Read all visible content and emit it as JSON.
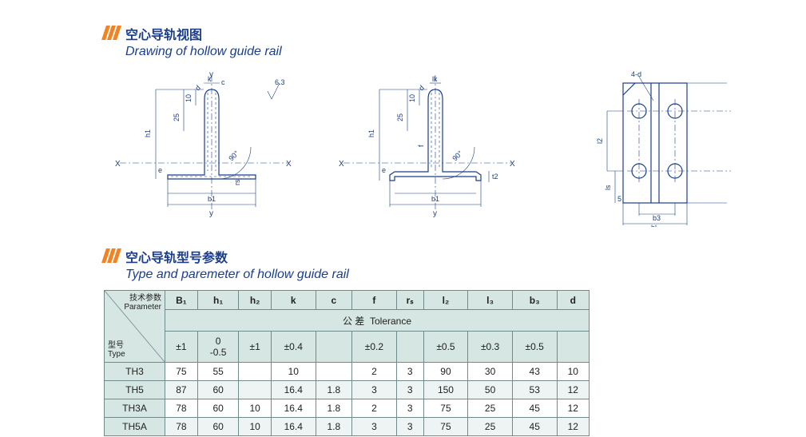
{
  "section1": {
    "title_cn": "空心导轨视图",
    "title_en": "Drawing of hollow guide rail"
  },
  "section2": {
    "title_cn": "空心导轨型号参数",
    "title_en": "Type and paremeter of hollow guide rail"
  },
  "drawing_labels": {
    "x": "X",
    "y": "y",
    "k": "k",
    "c": "c",
    "h1": "h1",
    "b1": "b1",
    "e": "e",
    "ten": "10",
    "twentyfive": "25",
    "ninety": "90°",
    "ra": "6.3",
    "l2": "l2",
    "ls": "ls",
    "b3": "b3",
    "bl": "bl",
    "fourd": "4-d",
    "t2": "t2",
    "lk": "lk",
    "f": "f",
    "five": "5",
    "d": "d",
    "rs": "rs"
  },
  "table": {
    "corner_top_cn": "技术参数",
    "corner_top_en": "Parameter",
    "corner_bottom_cn": "型号",
    "corner_bottom_en": "Type",
    "columns": [
      "B₁",
      "h₁",
      "h₂",
      "k",
      "c",
      "f",
      "rₛ",
      "l₂",
      "l₃",
      "b₃",
      "d"
    ],
    "tolerance_label_cn": "公 差",
    "tolerance_label_en": "Tolerance",
    "tolerances": [
      "±1",
      "0\n-0.5",
      "±1",
      "±0.4",
      "",
      "±0.2",
      "",
      "±0.5",
      "±0.3",
      "±0.5",
      ""
    ],
    "rows": [
      {
        "type": "TH3",
        "vals": [
          "75",
          "55",
          "",
          "10",
          "",
          "2",
          "3",
          "90",
          "30",
          "43",
          "10"
        ]
      },
      {
        "type": "TH5",
        "vals": [
          "87",
          "60",
          "",
          "16.4",
          "1.8",
          "3",
          "3",
          "150",
          "50",
          "53",
          "12"
        ]
      },
      {
        "type": "TH3A",
        "vals": [
          "78",
          "60",
          "10",
          "16.4",
          "1.8",
          "2",
          "3",
          "75",
          "25",
          "45",
          "12"
        ]
      },
      {
        "type": "TH5A",
        "vals": [
          "78",
          "60",
          "10",
          "16.4",
          "1.8",
          "3",
          "3",
          "75",
          "25",
          "45",
          "12"
        ]
      }
    ]
  },
  "colors": {
    "accent": "#1a3e8c",
    "orange": "#f58220",
    "table_header_bg": "#d6e6e3",
    "table_border": "#718a8a"
  }
}
